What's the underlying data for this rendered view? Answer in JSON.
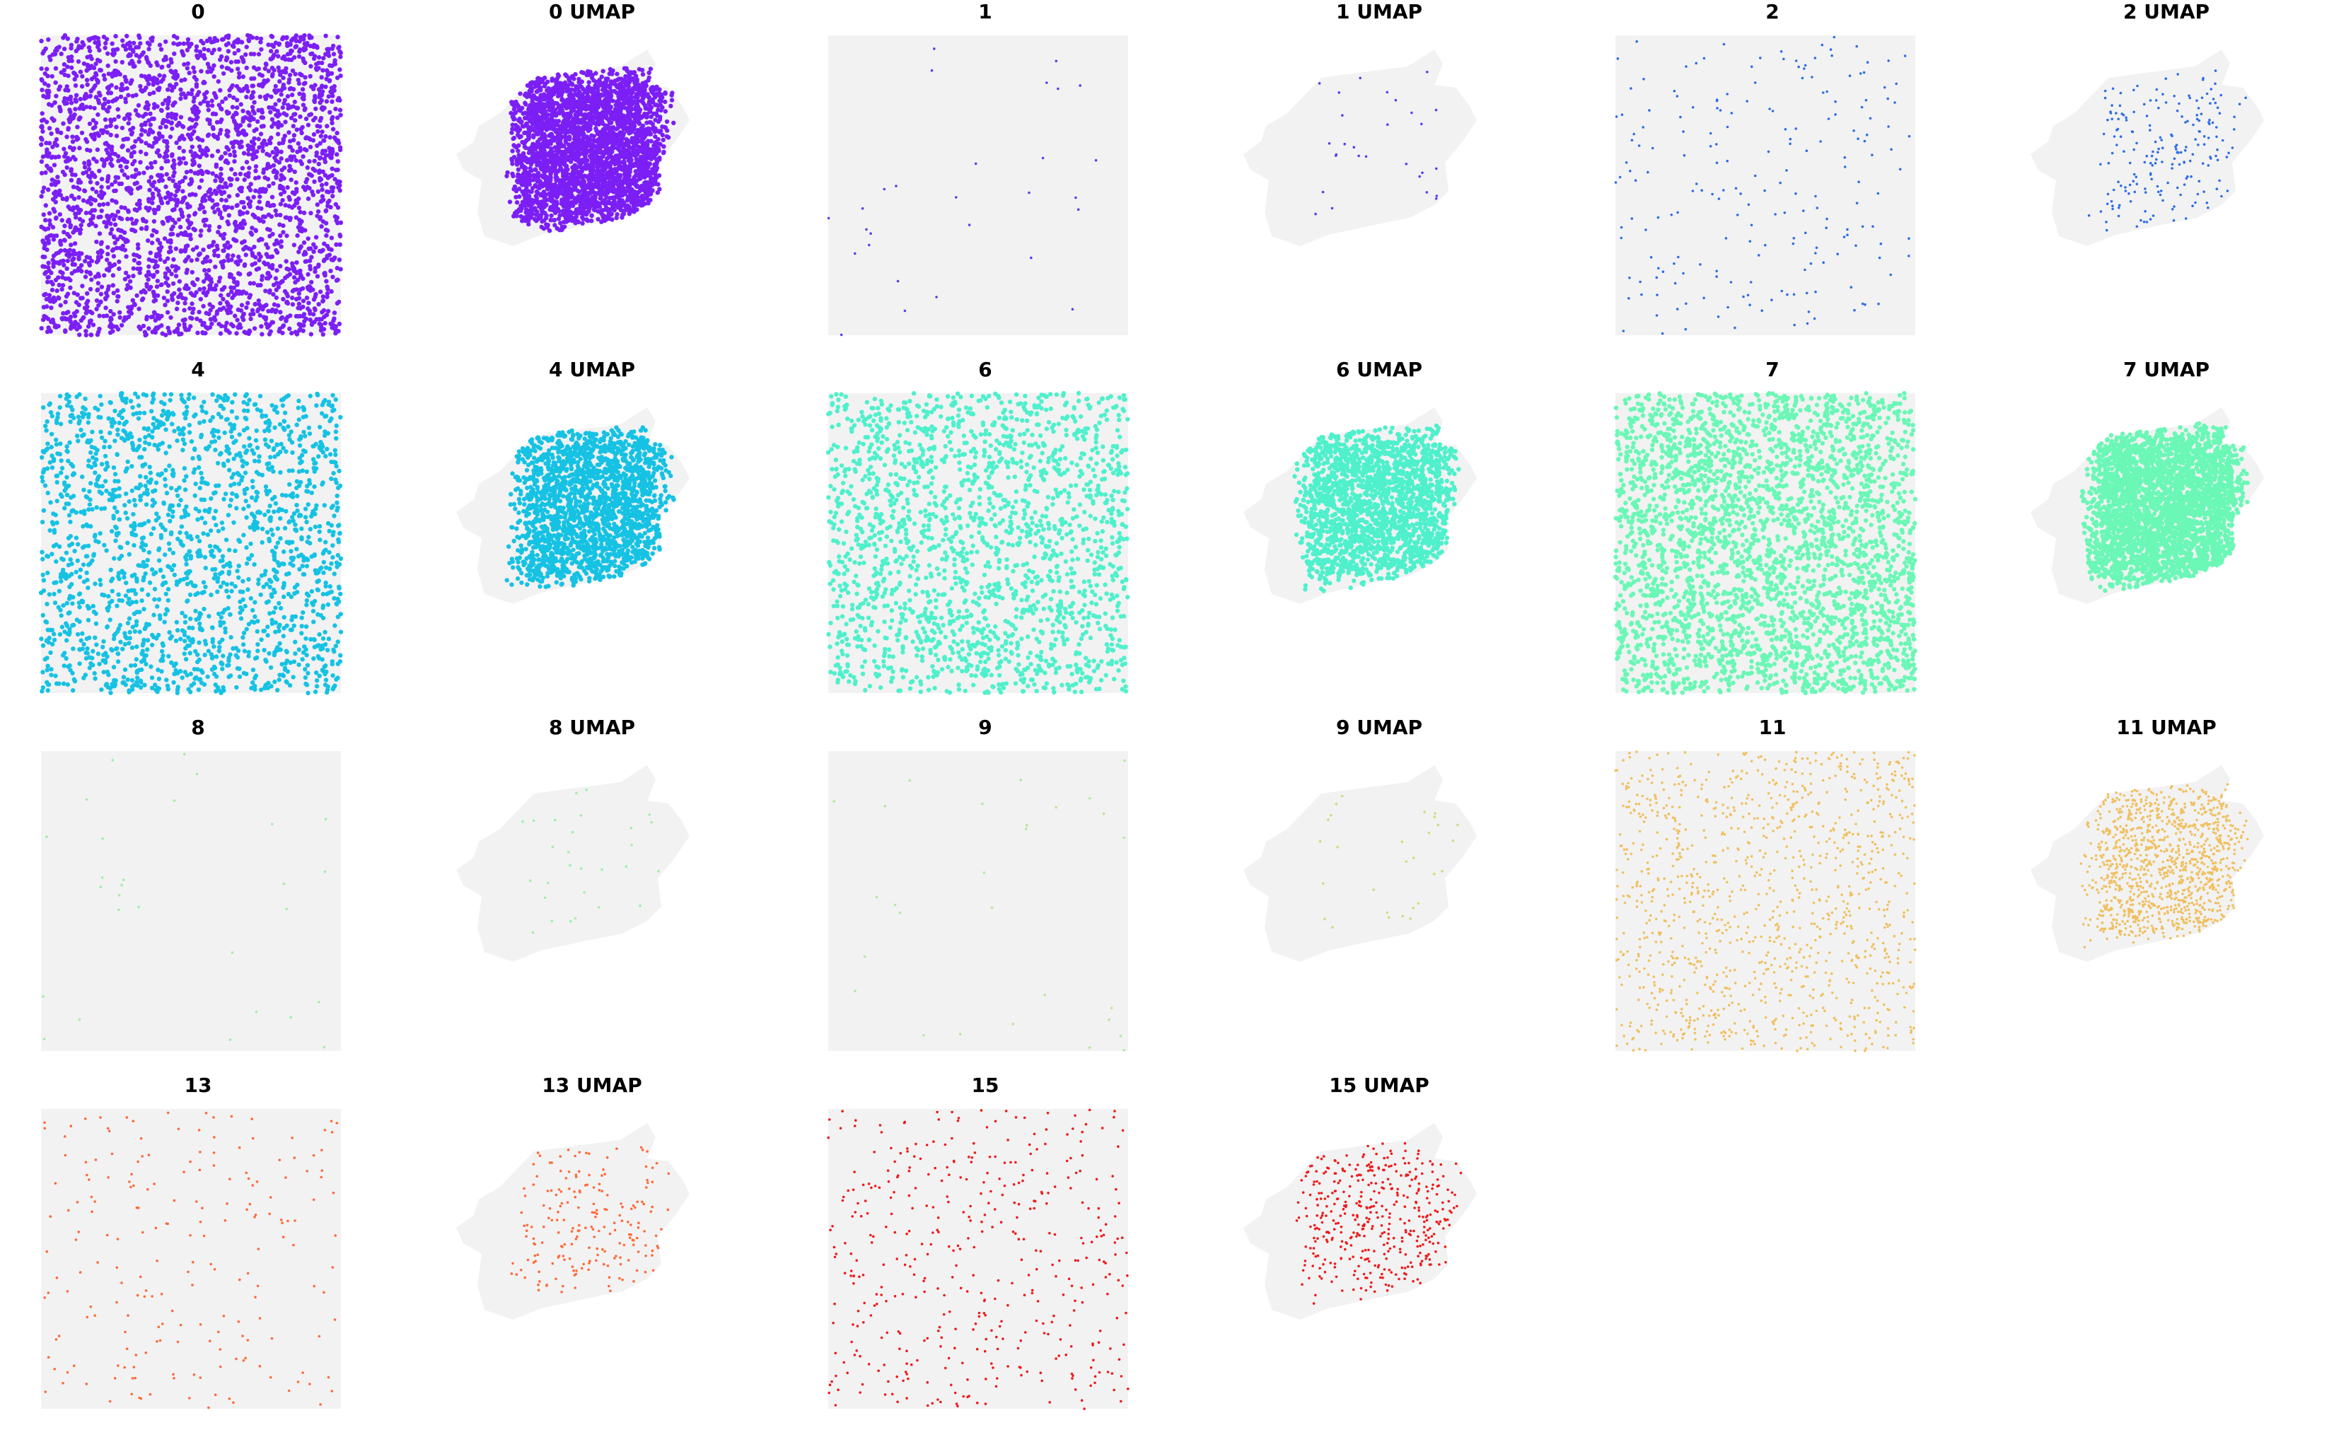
{
  "chart_data": {
    "type": "scatter",
    "background_color": "#f2f2f2",
    "panels": [
      {
        "title": "0",
        "kind": "spatial",
        "cluster": "0",
        "color": "#7b1ff5",
        "density": "very-high"
      },
      {
        "title": "0 UMAP",
        "kind": "umap",
        "cluster": "0",
        "color": "#7b1ff5",
        "density": "very-high"
      },
      {
        "title": "1",
        "kind": "spatial",
        "cluster": "1",
        "color": "#5a3cf0",
        "density": "very-low"
      },
      {
        "title": "1 UMAP",
        "kind": "umap",
        "cluster": "1",
        "color": "#5a3cf0",
        "density": "very-low"
      },
      {
        "title": "2",
        "kind": "spatial",
        "cluster": "2",
        "color": "#2f6ee6",
        "density": "low"
      },
      {
        "title": "2 UMAP",
        "kind": "umap",
        "cluster": "2",
        "color": "#2f6ee6",
        "density": "low"
      },
      {
        "title": "4",
        "kind": "spatial",
        "cluster": "4",
        "color": "#16c2e3",
        "density": "high"
      },
      {
        "title": "4 UMAP",
        "kind": "umap",
        "cluster": "4",
        "color": "#16c2e3",
        "density": "high"
      },
      {
        "title": "6",
        "kind": "spatial",
        "cluster": "6",
        "color": "#4ff0cc",
        "density": "high"
      },
      {
        "title": "6 UMAP",
        "kind": "umap",
        "cluster": "6",
        "color": "#4ff0cc",
        "density": "high"
      },
      {
        "title": "7",
        "kind": "spatial",
        "cluster": "7",
        "color": "#6bf7b6",
        "density": "very-high"
      },
      {
        "title": "7 UMAP",
        "kind": "umap",
        "cluster": "7",
        "color": "#6bf7b6",
        "density": "very-high"
      },
      {
        "title": "8",
        "kind": "spatial",
        "cluster": "8",
        "color": "#9ef0a8",
        "density": "very-low"
      },
      {
        "title": "8 UMAP",
        "kind": "umap",
        "cluster": "8",
        "color": "#9ef0a8",
        "density": "very-low"
      },
      {
        "title": "9",
        "kind": "spatial",
        "cluster": "9",
        "color": "#b7e89a",
        "density": "very-low"
      },
      {
        "title": "9 UMAP",
        "kind": "umap",
        "cluster": "9",
        "color": "#c9df80",
        "density": "very-low"
      },
      {
        "title": "11",
        "kind": "spatial",
        "cluster": "11",
        "color": "#f0c060",
        "density": "medium"
      },
      {
        "title": "11 UMAP",
        "kind": "umap",
        "cluster": "11",
        "color": "#f0c060",
        "density": "medium"
      },
      {
        "title": "13",
        "kind": "spatial",
        "cluster": "13",
        "color": "#ff6a3a",
        "density": "low"
      },
      {
        "title": "13 UMAP",
        "kind": "umap",
        "cluster": "13",
        "color": "#ff6a3a",
        "density": "low"
      },
      {
        "title": "15",
        "kind": "spatial",
        "cluster": "15",
        "color": "#ee1b1b",
        "density": "low-medium"
      },
      {
        "title": "15 UMAP",
        "kind": "umap",
        "cluster": "15",
        "color": "#ee1b1b",
        "density": "low-medium"
      }
    ]
  }
}
